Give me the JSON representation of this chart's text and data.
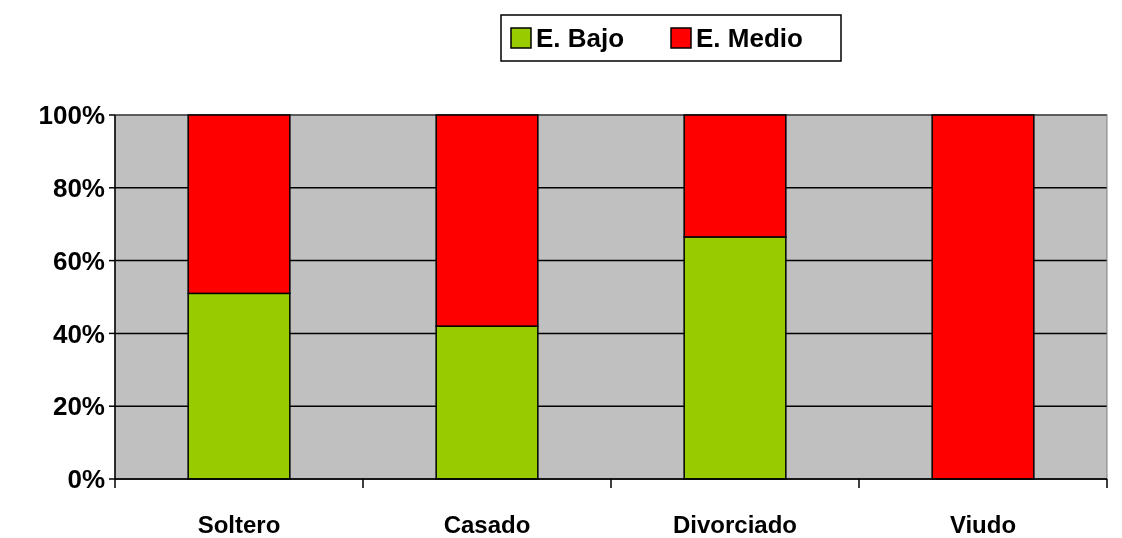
{
  "chart_data": {
    "type": "bar",
    "stacked": true,
    "categories": [
      "Soltero",
      "Casado",
      "Divorciado",
      "Viudo"
    ],
    "series": [
      {
        "name": "E. Bajo",
        "color": "#99cc00",
        "values": [
          51,
          42,
          66.5,
          0
        ]
      },
      {
        "name": "E. Medio",
        "color": "#ff0000",
        "values": [
          49,
          58,
          33.5,
          100
        ]
      }
    ],
    "ylim": [
      0,
      100
    ],
    "yticks": [
      {
        "value": 0,
        "label": "0%"
      },
      {
        "value": 20,
        "label": "20%"
      },
      {
        "value": 40,
        "label": "40%"
      },
      {
        "value": 60,
        "label": "60%"
      },
      {
        "value": 80,
        "label": "80%"
      },
      {
        "value": 100,
        "label": "100%"
      }
    ],
    "grid": "y",
    "legend": "top"
  }
}
